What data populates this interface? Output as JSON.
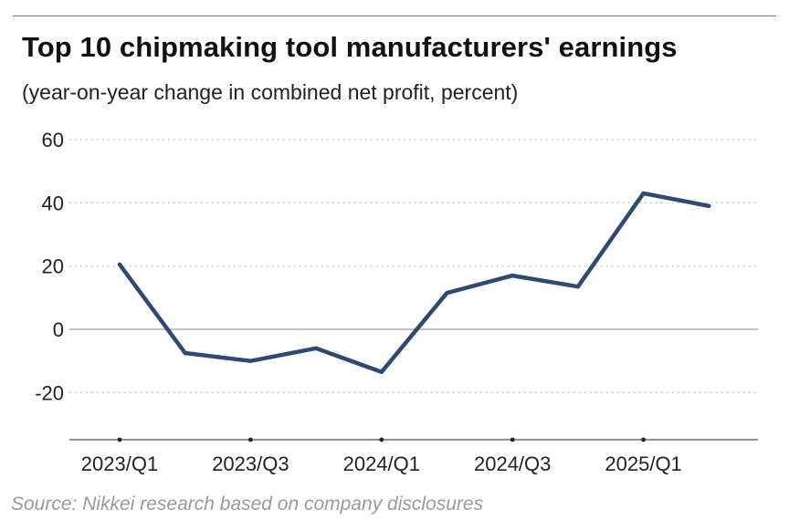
{
  "chart_data": {
    "type": "line",
    "title": "Top 10 chipmaking tool manufacturers' earnings",
    "subtitle": "(year-on-year change in combined net profit, percent)",
    "xlabel": "",
    "ylabel": "",
    "categories": [
      "2023/Q1",
      "2023/Q2",
      "2023/Q3",
      "2023/Q4",
      "2024/Q1",
      "2024/Q2",
      "2024/Q3",
      "2024/Q4",
      "2025/Q1",
      "2025/Q2"
    ],
    "x_tick_labels": [
      "2023/Q1",
      "2023/Q3",
      "2024/Q1",
      "2024/Q3",
      "2025/Q1"
    ],
    "x_tick_indices": [
      0,
      2,
      4,
      6,
      8
    ],
    "y_ticks": [
      60,
      40,
      20,
      0,
      -20
    ],
    "y_tick_labels": [
      "60",
      "40",
      "20",
      "0",
      "-20"
    ],
    "ylim": [
      -35,
      60
    ],
    "grid": true,
    "series": [
      {
        "name": "Combined net profit YoY change",
        "color": "#2e4a72",
        "values": [
          20.5,
          -7.5,
          -10,
          -6,
          -13.5,
          11.5,
          17,
          13.5,
          43,
          39
        ]
      }
    ]
  },
  "source": "Source: Nikkei research based on company disclosures",
  "colors": {
    "line": "#2e4a72",
    "gridline": "#bdbdbd",
    "zero_line": "#9e9e9e",
    "axis": "#555555",
    "source_text": "#9a9a9a"
  }
}
